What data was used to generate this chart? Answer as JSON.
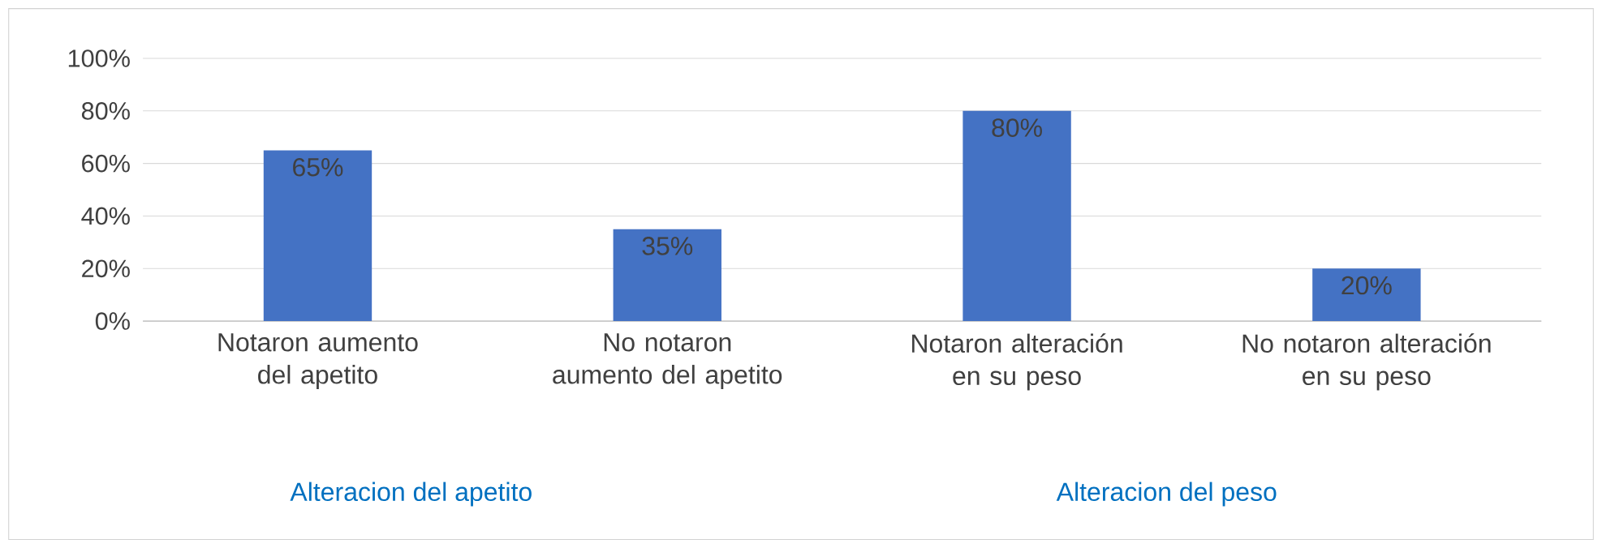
{
  "chart_data": {
    "type": "bar",
    "categories": [
      "Notaron aumento del apetito",
      "No notaron aumento del apetito",
      "Notaron alteración en su peso",
      "No notaron alteración en su peso"
    ],
    "values": [
      65,
      35,
      80,
      20
    ],
    "value_labels": [
      "65%",
      "35%",
      "80%",
      "20%"
    ],
    "color": "#4472c4",
    "ylim": [
      0,
      100
    ],
    "yticks": [
      {
        "value": 0,
        "label": "0%"
      },
      {
        "value": 20,
        "label": "20%"
      },
      {
        "value": 40,
        "label": "40%"
      },
      {
        "value": 60,
        "label": "60%"
      },
      {
        "value": 80,
        "label": "80%"
      },
      {
        "value": 100,
        "label": "100%"
      }
    ],
    "grid": "y",
    "annotations": [
      "Alteracion del apetito",
      "Alteracion del peso"
    ]
  }
}
